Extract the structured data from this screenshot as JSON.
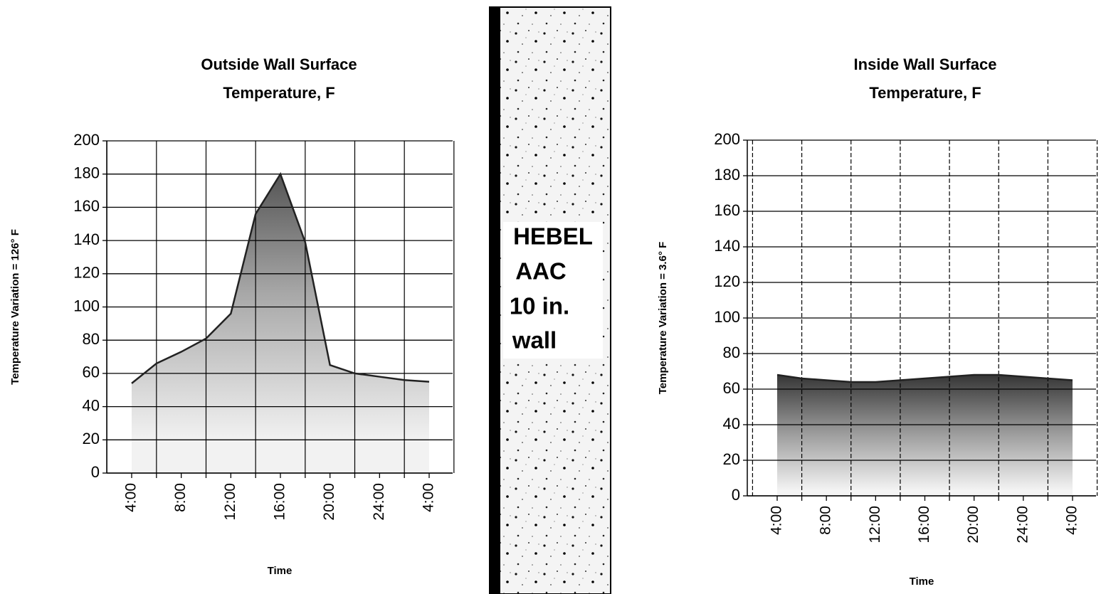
{
  "chart_data": [
    {
      "type": "area",
      "title": [
        "Outside Wall Surface",
        "Temperature, F"
      ],
      "y_label": "Temperature Variation = 126° F",
      "x_label": "Time",
      "categories": [
        "4:00",
        null,
        "8:00",
        null,
        "12:00",
        null,
        "16:00",
        null,
        "20:00",
        null,
        "24:00",
        null,
        "4:00"
      ],
      "series": [
        {
          "color": "#222222",
          "values": [
            54,
            66,
            73,
            81,
            96,
            156,
            180,
            139,
            65,
            60,
            58,
            56,
            55
          ]
        }
      ],
      "ylim": [
        0,
        200
      ],
      "yticks": [
        0,
        20,
        40,
        60,
        80,
        100,
        120,
        140,
        160,
        180,
        200
      ],
      "grid": true
    },
    {
      "type": "area",
      "title": [
        "Inside Wall Surface",
        "Temperature, F"
      ],
      "y_label": "Temperature Variation = 3.6° F",
      "x_label": "Time",
      "categories": [
        "4:00",
        null,
        "8:00",
        null,
        "12:00",
        null,
        "16:00",
        null,
        "20:00",
        null,
        "24:00",
        null,
        "4:00"
      ],
      "series": [
        {
          "color": "#222222",
          "values": [
            68,
            66,
            65,
            64,
            64,
            65,
            66,
            67,
            68,
            68,
            67,
            66,
            65
          ]
        }
      ],
      "ylim": [
        0,
        200
      ],
      "yticks": [
        0,
        20,
        40,
        60,
        80,
        100,
        120,
        140,
        160,
        180,
        200
      ],
      "grid": true
    }
  ],
  "wall": {
    "lines": [
      "HEBEL",
      "AAC",
      "10 in.",
      "wall"
    ]
  }
}
